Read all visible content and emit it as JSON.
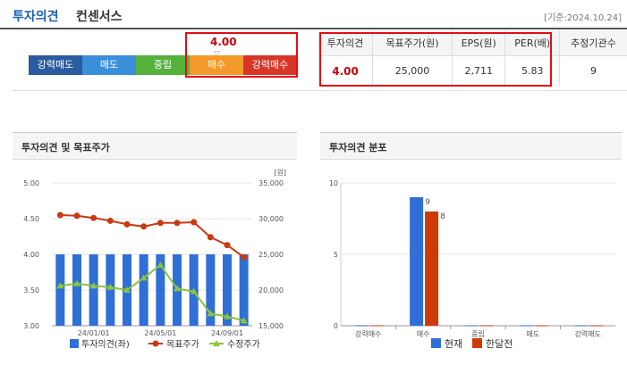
{
  "header": {
    "title_main": "투자의견",
    "title_sub": "컨센서스",
    "as_of": "[기준:2024.10.24]"
  },
  "scale": {
    "segments": [
      "강력매도",
      "매도",
      "중립",
      "매수",
      "강력매수"
    ],
    "score": "4.00",
    "marker": "▽",
    "colors": [
      "#2a5c9f",
      "#3b8fd9",
      "#55b13c",
      "#f39a2a",
      "#d9362a"
    ]
  },
  "consensus_table": {
    "headers": [
      "투자의견",
      "목표주가(원)",
      "EPS(원)",
      "PER(배)",
      "추정기관수"
    ],
    "values": [
      "4.00",
      "25,000",
      "2,711",
      "5.83",
      "9"
    ]
  },
  "chart_data": [
    {
      "type": "bar+line",
      "title": "투자의견 및 목표주가",
      "y_left": {
        "ylim": [
          3.0,
          5.0
        ],
        "ticks": [
          "3.00",
          "3.50",
          "4.00",
          "4.50",
          "5.00"
        ]
      },
      "y_right": {
        "ylim": [
          15000,
          35000
        ],
        "ticks": [
          "15,000",
          "20,000",
          "25,000",
          "30,000",
          "35,000"
        ],
        "unit": "[원]"
      },
      "x_ticks": [
        "24/01/01",
        "24/05/01",
        "24/09/01"
      ],
      "series": [
        {
          "name": "투자의견(좌)",
          "type": "bar",
          "axis": "left",
          "color": "#2f6fd6",
          "values": [
            4,
            4,
            4,
            4,
            4,
            4,
            4,
            4,
            4,
            4,
            4,
            4
          ]
        },
        {
          "name": "목표주가",
          "type": "line",
          "axis": "right",
          "color": "#c83a12",
          "values": [
            30500,
            30400,
            30100,
            29700,
            29200,
            28900,
            29400,
            29400,
            29500,
            27400,
            26300,
            24600
          ]
        },
        {
          "name": "수정주가",
          "type": "line",
          "axis": "right",
          "color": "#8cc43c",
          "values": [
            20600,
            20900,
            20600,
            20400,
            20000,
            21700,
            23500,
            20200,
            19800,
            16700,
            16300,
            15700
          ]
        }
      ],
      "legend": [
        "투자의견(좌)",
        "목표주가",
        "수정주가"
      ],
      "legend_position": "bottom"
    },
    {
      "type": "bar",
      "title": "투자의견 분포",
      "categories": [
        "강력매수",
        "매수",
        "중립",
        "매도",
        "강력매도"
      ],
      "ylim": [
        0,
        10
      ],
      "y_ticks": [
        "0",
        "5",
        "10"
      ],
      "series": [
        {
          "name": "현재",
          "color": "#2f6fd6",
          "values": [
            0,
            9,
            0,
            0,
            0
          ],
          "labels": [
            "",
            "9",
            "",
            "",
            ""
          ]
        },
        {
          "name": "한달전",
          "color": "#cc3a08",
          "values": [
            0,
            8,
            0,
            0,
            0
          ],
          "labels": [
            "",
            "8",
            "",
            "",
            ""
          ]
        }
      ],
      "legend": [
        "현재",
        "한달전"
      ],
      "legend_position": "bottom"
    }
  ]
}
